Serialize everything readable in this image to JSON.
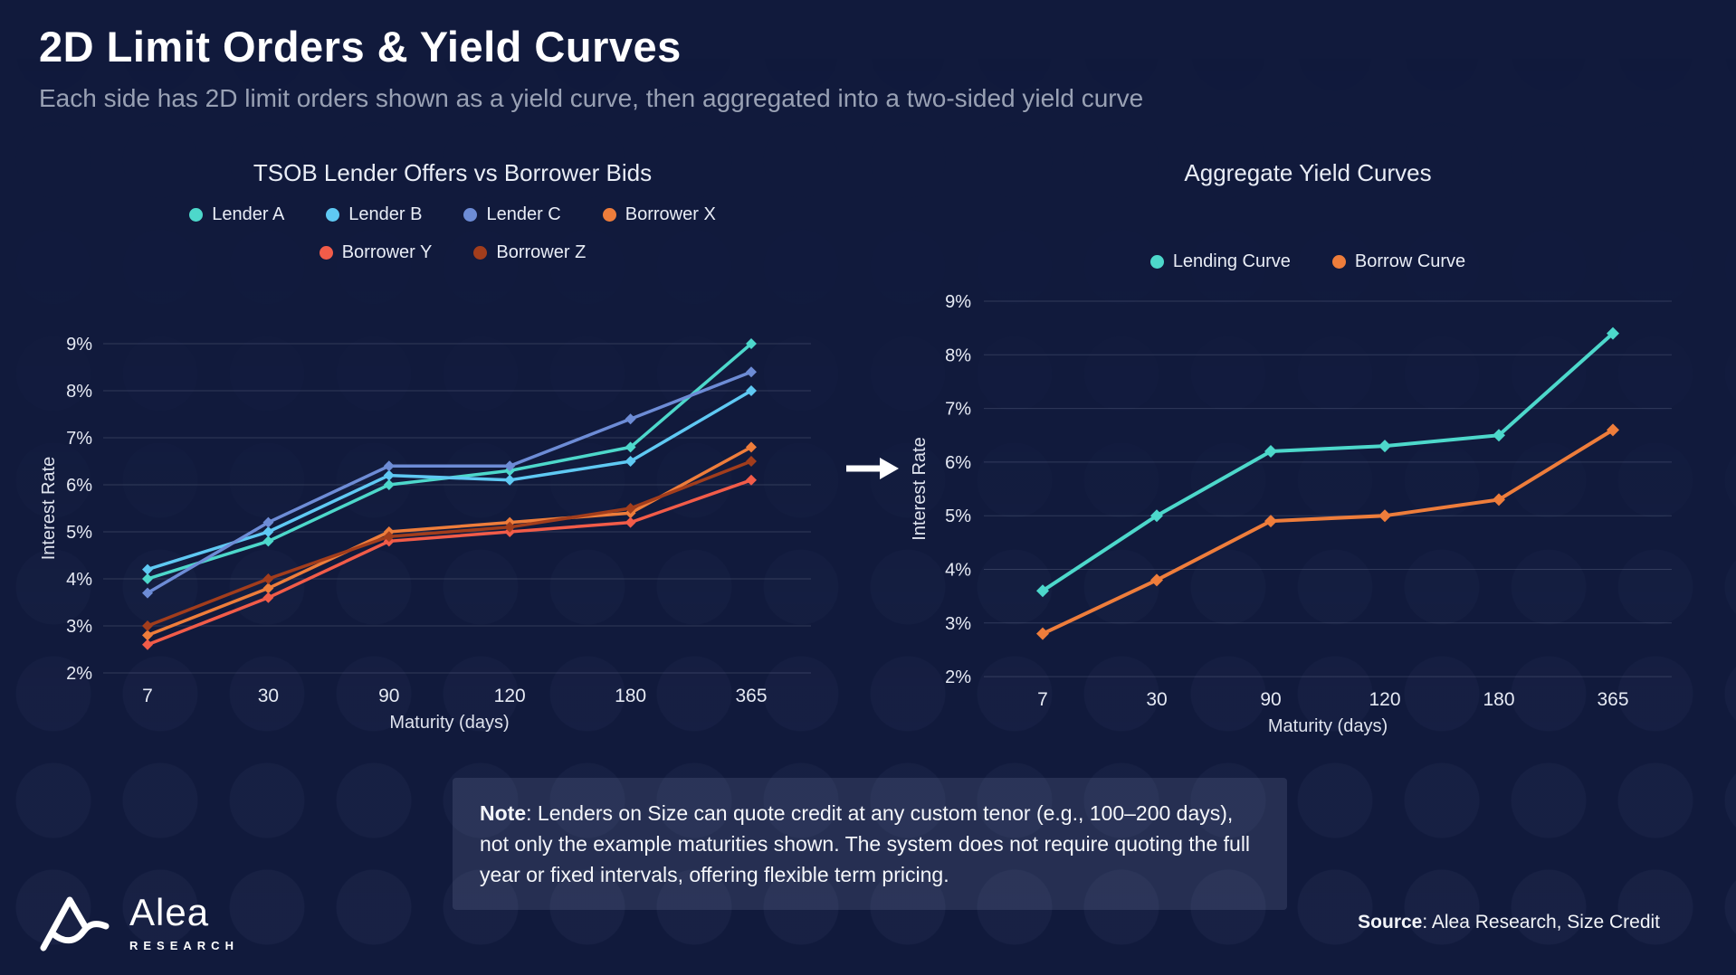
{
  "page": {
    "background": "#111a3c",
    "accent_teal": "#4dd8cb",
    "accent_orange": "#ee7d3b"
  },
  "header": {
    "title": "2D Limit Orders & Yield Curves",
    "subtitle": "Each side has 2D limit orders shown as a yield curve, then aggregated into a two-sided yield curve"
  },
  "chart_data": [
    {
      "type": "line",
      "title": "TSOB Lender Offers vs Borrower Bids",
      "xlabel": "Maturity (days)",
      "ylabel": "Interest Rate",
      "categories": [
        "7",
        "30",
        "90",
        "120",
        "180",
        "365"
      ],
      "ylim": [
        2,
        9
      ],
      "yticks": [
        9,
        8,
        7,
        6,
        5,
        4,
        3,
        2
      ],
      "ytick_suffix": "%",
      "grid": true,
      "legend_position": "top",
      "series": [
        {
          "name": "Lender A",
          "color": "#4dd8cb",
          "values": [
            4.0,
            4.8,
            6.0,
            6.3,
            6.8,
            9.0
          ]
        },
        {
          "name": "Lender B",
          "color": "#5fc9f3",
          "values": [
            4.2,
            5.0,
            6.2,
            6.1,
            6.5,
            8.0
          ]
        },
        {
          "name": "Lender C",
          "color": "#6d8cd6",
          "values": [
            3.7,
            5.2,
            6.4,
            6.4,
            7.4,
            8.4
          ]
        },
        {
          "name": "Borrower X",
          "color": "#ee7d3b",
          "values": [
            2.8,
            3.8,
            5.0,
            5.2,
            5.4,
            6.8
          ]
        },
        {
          "name": "Borrower Y",
          "color": "#f25c49",
          "values": [
            2.6,
            3.6,
            4.8,
            5.0,
            5.2,
            6.1
          ]
        },
        {
          "name": "Borrower Z",
          "color": "#a23d1c",
          "values": [
            3.0,
            4.0,
            4.9,
            5.1,
            5.5,
            6.5
          ]
        }
      ]
    },
    {
      "type": "line",
      "title": "Aggregate Yield Curves",
      "xlabel": "Maturity (days)",
      "ylabel": "Interest Rate",
      "categories": [
        "7",
        "30",
        "90",
        "120",
        "180",
        "365"
      ],
      "ylim": [
        2,
        9
      ],
      "yticks": [
        9,
        8,
        7,
        6,
        5,
        4,
        3,
        2
      ],
      "ytick_suffix": "%",
      "grid": true,
      "legend_position": "top",
      "series": [
        {
          "name": "Lending Curve",
          "color": "#4dd8cb",
          "values": [
            3.6,
            5.0,
            6.2,
            6.3,
            6.5,
            8.4
          ]
        },
        {
          "name": "Borrow Curve",
          "color": "#ee7d3b",
          "values": [
            2.8,
            3.8,
            4.9,
            5.0,
            5.3,
            6.6
          ]
        }
      ]
    }
  ],
  "note": {
    "label": "Note",
    "body": ": Lenders on Size can quote credit at any custom tenor (e.g., 100–200 days), not only the example maturities shown. The system does not require quoting the full year or fixed intervals, offering flexible term pricing."
  },
  "footer": {
    "logo_word": "Alea",
    "logo_subtext": "RESEARCH",
    "source_label": "Source",
    "source_body": ": Alea Research, Size Credit"
  }
}
